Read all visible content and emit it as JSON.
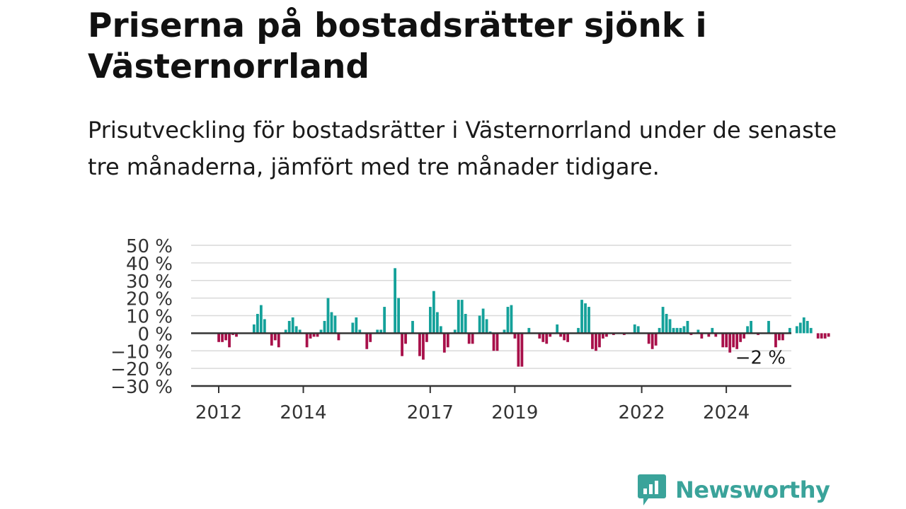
{
  "header": {
    "title": "Priserna på bostadsrätter sjönk i Västernorrland",
    "subtitle": "Prisutveckling för bostadsrätter i Västernorrland under de senaste tre månaderna, jämfört med tre månader tidigare."
  },
  "brand": {
    "name": "Newsworthy",
    "color": "#3aa39a",
    "icon": "bar-chart-logo-icon"
  },
  "colors": {
    "positive": "#14a19a",
    "negative": "#a8104a",
    "grid": "#d9d9d9",
    "zero": "#333333"
  },
  "chart_data": {
    "type": "bar",
    "title": "",
    "xlabel": "",
    "ylabel": "",
    "ylim": [
      -30,
      50
    ],
    "yticks": [
      {
        "value": 50,
        "label": "50 %"
      },
      {
        "value": 40,
        "label": "40 %"
      },
      {
        "value": 30,
        "label": "30 %"
      },
      {
        "value": 20,
        "label": "20 %"
      },
      {
        "value": 10,
        "label": "10 %"
      },
      {
        "value": 0,
        "label": "0 %"
      },
      {
        "value": -10,
        "label": "−10 %"
      },
      {
        "value": -20,
        "label": "−20 %"
      },
      {
        "value": -30,
        "label": "−30 %"
      }
    ],
    "xticks": [
      {
        "year": 2012,
        "label": "2012"
      },
      {
        "year": 2014,
        "label": "2014"
      },
      {
        "year": 2017,
        "label": "2017"
      },
      {
        "year": 2019,
        "label": "2019"
      },
      {
        "year": 2022,
        "label": "2022"
      },
      {
        "year": 2024,
        "label": "2024"
      }
    ],
    "grid": true,
    "x_start": "2012-01",
    "annotation": {
      "label": "−2 %",
      "value": -2
    },
    "values": [
      -5,
      -5,
      -4,
      -8,
      -1,
      -2,
      0,
      0,
      0,
      0,
      5,
      11,
      16,
      8,
      0,
      -7,
      -4,
      -8,
      0,
      2,
      7,
      9,
      4,
      2,
      0,
      -8,
      -3,
      -2,
      -2,
      2,
      7,
      20,
      12,
      10,
      -4,
      0,
      0,
      0,
      6,
      9,
      2,
      0,
      -9,
      -5,
      0,
      2,
      2,
      15,
      0,
      0,
      37,
      20,
      -13,
      -6,
      0,
      7,
      0,
      -13,
      -15,
      -5,
      15,
      24,
      12,
      4,
      -11,
      -8,
      0,
      2,
      19,
      19,
      11,
      -6,
      -6,
      0,
      10,
      14,
      8,
      1,
      -10,
      -10,
      0,
      2,
      15,
      16,
      -3,
      -19,
      -19,
      0,
      3,
      0,
      0,
      -3,
      -5,
      -6,
      -2,
      0,
      5,
      -2,
      -4,
      -5,
      0,
      0,
      3,
      19,
      17,
      15,
      -9,
      -10,
      -8,
      -3,
      -2,
      0,
      -1,
      0,
      0,
      -1,
      0,
      0,
      5,
      4,
      0,
      0,
      -6,
      -9,
      -7,
      3,
      15,
      11,
      8,
      3,
      3,
      3,
      4,
      7,
      -1,
      0,
      2,
      -3,
      0,
      -2,
      3,
      -2,
      0,
      -8,
      -8,
      -11,
      -8,
      -9,
      -5,
      -3,
      4,
      7,
      0,
      -1,
      0,
      0,
      7,
      0,
      -8,
      -4,
      -4,
      0,
      3,
      0,
      4,
      6,
      9,
      7,
      3,
      0,
      -3,
      -3,
      -3,
      -2
    ]
  }
}
